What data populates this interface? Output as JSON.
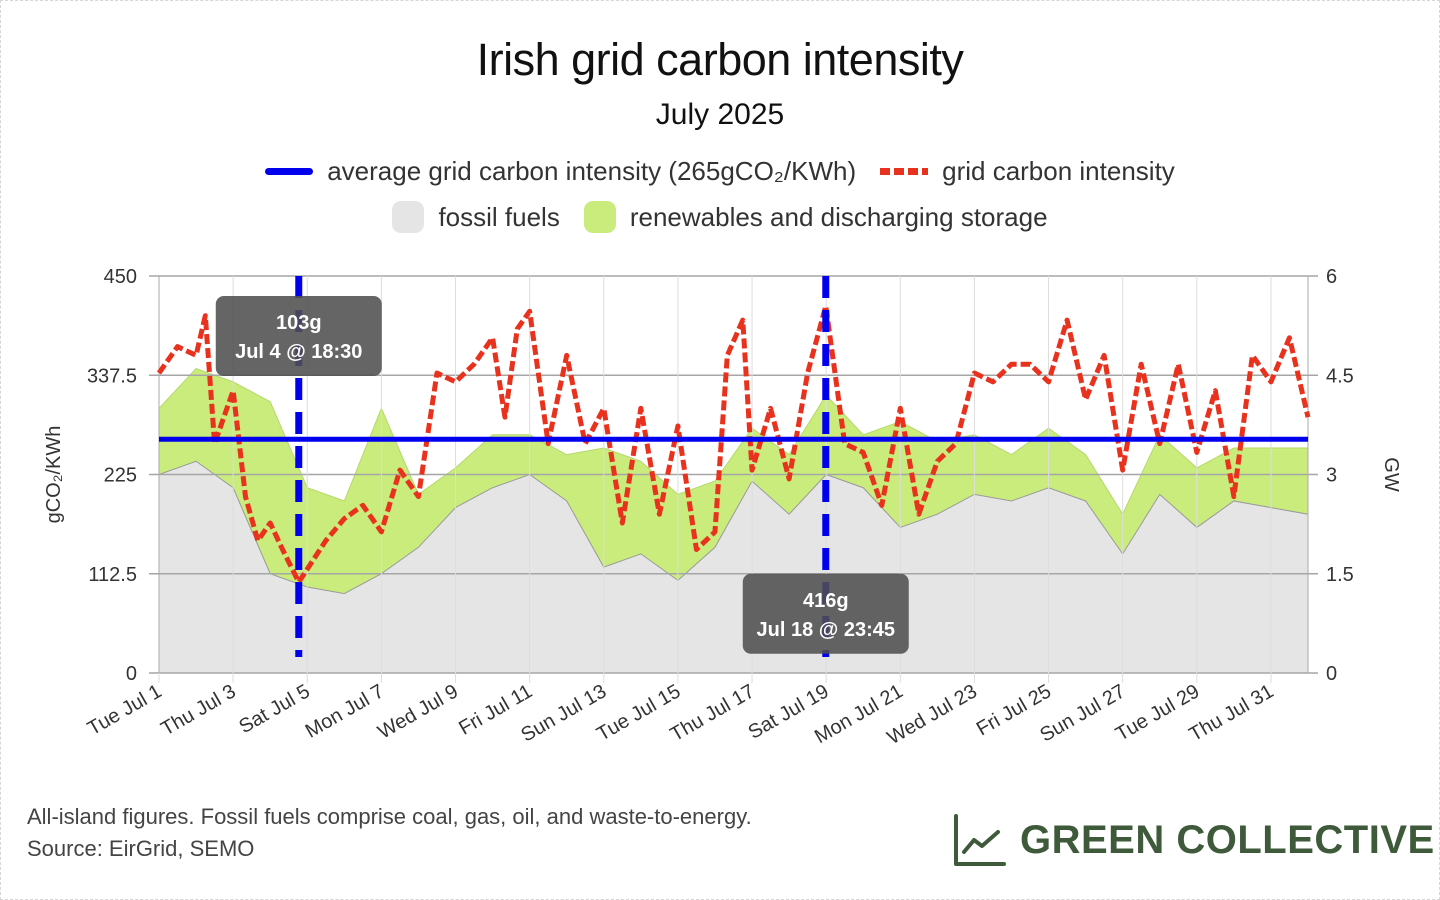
{
  "title": "Irish grid carbon intensity",
  "subtitle": "July 2025",
  "legend": {
    "avg": "average grid carbon intensity (265gCO₂/KWh)",
    "grid": "grid carbon intensity",
    "fossil": "fossil fuels",
    "renew": "renewables and discharging storage"
  },
  "colors": {
    "avg": "#0000ee",
    "grid": "#e8321e",
    "fossil": "#e5e5e5",
    "renew": "#c9ec7c",
    "marker": "#0000ee",
    "brand": "#3f5a3b"
  },
  "footnote": {
    "line1": "All-island figures. Fossil fuels comprise coal, gas, oil, and waste-to-energy.",
    "line2": "Source: EirGrid, SEMO"
  },
  "brand": {
    "name": "GREEN COLLECTIVE",
    "icon": "line-chart-icon"
  },
  "chart_data": {
    "type": "line",
    "x_range": [
      "2025-07-01",
      "2025-08-01"
    ],
    "xticks": [
      "Tue Jul 1",
      "Thu Jul 3",
      "Sat Jul 5",
      "Mon Jul 7",
      "Wed Jul 9",
      "Fri Jul 11",
      "Sun Jul 13",
      "Tue Jul 15",
      "Thu Jul 17",
      "Sat Jul 19",
      "Mon Jul 21",
      "Wed Jul 23",
      "Fri Jul 25",
      "Sun Jul 27",
      "Tue Jul 29",
      "Thu Jul 31"
    ],
    "ylabel_left": "gCO₂/KWh",
    "ylabel_right": "GW",
    "ylim_left": [
      0,
      450
    ],
    "ylim_right": [
      0,
      6
    ],
    "yticks_left": [
      "0",
      "112.5",
      "225",
      "337.5",
      "450"
    ],
    "yticks_right": [
      "0",
      "1.5",
      "3",
      "4.5",
      "6"
    ],
    "average": 265,
    "series": [
      {
        "name": "grid carbon intensity",
        "axis": "left",
        "x": [
          "2025-07-01",
          "2025-07-01 12:00",
          "2025-07-02",
          "2025-07-02 06:00",
          "2025-07-02 12:00",
          "2025-07-03",
          "2025-07-03 08:00",
          "2025-07-03 16:00",
          "2025-07-04",
          "2025-07-04 08:00",
          "2025-07-04 18:30",
          "2025-07-05 12:00",
          "2025-07-06",
          "2025-07-06 12:00",
          "2025-07-07",
          "2025-07-07 12:00",
          "2025-07-08",
          "2025-07-08 12:00",
          "2025-07-09",
          "2025-07-09 12:00",
          "2025-07-10",
          "2025-07-10 08:00",
          "2025-07-10 16:00",
          "2025-07-11",
          "2025-07-11 12:00",
          "2025-07-12",
          "2025-07-12 12:00",
          "2025-07-13",
          "2025-07-13 12:00",
          "2025-07-14",
          "2025-07-14 12:00",
          "2025-07-15",
          "2025-07-15 12:00",
          "2025-07-16",
          "2025-07-16 08:00",
          "2025-07-16 18:00",
          "2025-07-17",
          "2025-07-17 12:00",
          "2025-07-18",
          "2025-07-18 12:00",
          "2025-07-18 23:45",
          "2025-07-19 12:00",
          "2025-07-20",
          "2025-07-20 12:00",
          "2025-07-21",
          "2025-07-21 12:00",
          "2025-07-22",
          "2025-07-22 12:00",
          "2025-07-23",
          "2025-07-23 12:00",
          "2025-07-24",
          "2025-07-24 12:00",
          "2025-07-25",
          "2025-07-25 12:00",
          "2025-07-26",
          "2025-07-26 12:00",
          "2025-07-27",
          "2025-07-27 12:00",
          "2025-07-28",
          "2025-07-28 12:00",
          "2025-07-29",
          "2025-07-29 12:00",
          "2025-07-30",
          "2025-07-30 12:00",
          "2025-07-31",
          "2025-07-31 12:00",
          "2025-08-01"
        ],
        "values": [
          340,
          370,
          360,
          405,
          260,
          320,
          200,
          150,
          170,
          140,
          103,
          150,
          175,
          190,
          160,
          230,
          200,
          340,
          330,
          350,
          380,
          290,
          390,
          410,
          260,
          360,
          260,
          300,
          170,
          300,
          180,
          280,
          140,
          160,
          360,
          400,
          230,
          300,
          220,
          340,
          416,
          260,
          250,
          190,
          300,
          180,
          240,
          260,
          340,
          330,
          350,
          350,
          330,
          400,
          310,
          360,
          230,
          350,
          260,
          350,
          250,
          320,
          200,
          360,
          330,
          380,
          290
        ]
      },
      {
        "name": "fossil fuels",
        "axis": "right",
        "x": [
          "2025-07-01",
          "2025-07-02",
          "2025-07-03",
          "2025-07-04",
          "2025-07-05",
          "2025-07-06",
          "2025-07-07",
          "2025-07-08",
          "2025-07-09",
          "2025-07-10",
          "2025-07-11",
          "2025-07-12",
          "2025-07-13",
          "2025-07-14",
          "2025-07-15",
          "2025-07-16",
          "2025-07-17",
          "2025-07-18",
          "2025-07-19",
          "2025-07-20",
          "2025-07-21",
          "2025-07-22",
          "2025-07-23",
          "2025-07-24",
          "2025-07-25",
          "2025-07-26",
          "2025-07-27",
          "2025-07-28",
          "2025-07-29",
          "2025-07-30",
          "2025-07-31",
          "2025-08-01"
        ],
        "values": [
          3.0,
          3.2,
          2.8,
          1.5,
          1.3,
          1.2,
          1.5,
          1.9,
          2.5,
          2.8,
          3.0,
          2.6,
          1.6,
          1.8,
          1.4,
          1.9,
          2.9,
          2.4,
          3.0,
          2.8,
          2.2,
          2.4,
          2.7,
          2.6,
          2.8,
          2.6,
          1.8,
          2.7,
          2.2,
          2.6,
          2.5,
          2.4
        ]
      },
      {
        "name": "renewables and discharging storage",
        "axis": "right",
        "x": [
          "2025-07-01",
          "2025-07-02",
          "2025-07-03",
          "2025-07-04",
          "2025-07-05",
          "2025-07-06",
          "2025-07-07",
          "2025-07-08",
          "2025-07-09",
          "2025-07-10",
          "2025-07-11",
          "2025-07-12",
          "2025-07-13",
          "2025-07-14",
          "2025-07-15",
          "2025-07-16",
          "2025-07-17",
          "2025-07-18",
          "2025-07-19",
          "2025-07-20",
          "2025-07-21",
          "2025-07-22",
          "2025-07-23",
          "2025-07-24",
          "2025-07-25",
          "2025-07-26",
          "2025-07-27",
          "2025-07-28",
          "2025-07-29",
          "2025-07-30",
          "2025-07-31",
          "2025-08-01"
        ],
        "values": [
          1.0,
          1.4,
          1.6,
          2.6,
          1.5,
          1.4,
          2.5,
          0.8,
          0.6,
          0.8,
          0.6,
          0.7,
          1.8,
          1.4,
          1.3,
          1.0,
          0.8,
          0.9,
          1.2,
          0.8,
          1.6,
          1.1,
          0.9,
          0.7,
          0.9,
          0.7,
          0.6,
          0.9,
          0.9,
          0.8,
          0.9,
          1.0
        ]
      }
    ],
    "annotations": [
      {
        "date": "2025-07-04 18:30",
        "value": 103,
        "label": "103g",
        "sublabel": "Jul 4 @ 18:30"
      },
      {
        "date": "2025-07-18 23:45",
        "value": 416,
        "label": "416g",
        "sublabel": "Jul 18 @ 23:45"
      }
    ],
    "grid": true,
    "legend_position": "top"
  }
}
